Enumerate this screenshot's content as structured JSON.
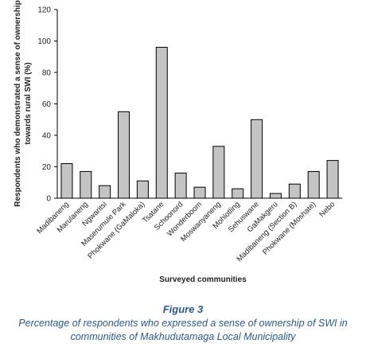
{
  "chart_data": {
    "type": "bar",
    "title": "",
    "xlabel": "Surveyed communities",
    "ylabel": [
      "Respondents who demonstrated a sense of ownership",
      "towards rural SWI (%)"
    ],
    "ylim": [
      0,
      120
    ],
    "yticks": [
      "0",
      "20",
      "40",
      "60",
      "80",
      "100",
      "120"
    ],
    "categories": [
      "Madibaneng",
      "Marulaneng",
      "Ngwaritsi",
      "Maserumule Park",
      "Phokwane (GaMaloka)",
      "Tsatane",
      "Schoonord",
      "Wonderboom",
      "Moswanyaneng",
      "Mohlotling",
      "Sehuswane",
      "GaMakgeru",
      "Madibaneng (Section B)",
      "Phokwane (Moshate)",
      "Nebo"
    ],
    "values": [
      22,
      17,
      8,
      55,
      11,
      96,
      16,
      7,
      33,
      6,
      50,
      3,
      9,
      17,
      24
    ],
    "bar_color": "#c4c4c4",
    "grid": false
  },
  "caption": {
    "label": "Figure 3",
    "line1": "Percentage of respondents who expressed a sense of ownership of SWI in",
    "line2": "communities of Makhudutamaga Local Municipality"
  }
}
